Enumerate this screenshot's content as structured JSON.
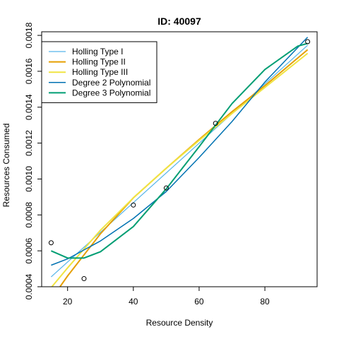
{
  "chart_data": {
    "type": "scatter",
    "title": "ID: 40097",
    "xlabel": "Resource Density",
    "ylabel": "Resources Consumed",
    "xlim": [
      12.12,
      95.88
    ],
    "ylim": [
      0.0004,
      0.00182
    ],
    "x_ticks": [
      20,
      40,
      60,
      80
    ],
    "y_ticks": [
      0.0004,
      0.0006,
      0.0008,
      0.001,
      0.0012,
      0.0014,
      0.0016,
      0.0018
    ],
    "x_tick_labels": [
      "20",
      "40",
      "60",
      "80"
    ],
    "y_tick_labels": [
      "0.0004",
      "0.0006",
      "0.0008",
      "0.0010",
      "0.0012",
      "0.0014",
      "0.0016",
      "0.0018"
    ],
    "grid": false,
    "legend_position": "top-left",
    "points": {
      "x": [
        15,
        25,
        40,
        50,
        65,
        93
      ],
      "y": [
        0.000645,
        0.000445,
        0.000855,
        0.00095,
        0.00131,
        0.001765
      ]
    },
    "series": [
      {
        "name": "Holling Type I",
        "color": "#56B4E9",
        "width": 1.2,
        "x": [
          15,
          93
        ],
        "y": [
          0.000455,
          0.001745
        ]
      },
      {
        "name": "Holling Type II",
        "color": "#E69F00",
        "width": 2,
        "x": [
          15,
          20,
          30,
          40,
          50,
          60,
          70,
          80,
          93
        ],
        "y": [
          0.00033,
          0.00046,
          0.000695,
          0.000895,
          0.00106,
          0.00122,
          0.001375,
          0.00152,
          0.00172
        ]
      },
      {
        "name": "Holling Type III",
        "color": "#F0E442",
        "width": 2,
        "x": [
          15,
          20,
          30,
          40,
          50,
          60,
          70,
          80,
          93
        ],
        "y": [
          0.000395,
          0.000505,
          0.000715,
          0.000895,
          0.00106,
          0.001215,
          0.001365,
          0.00151,
          0.0017
        ]
      },
      {
        "name": "Degree 2 Polynomial",
        "color": "#0072B2",
        "width": 1.5,
        "x": [
          15,
          20,
          30,
          40,
          50,
          60,
          70,
          80,
          93
        ],
        "y": [
          0.00052,
          0.000555,
          0.000655,
          0.00078,
          0.00093,
          0.00112,
          0.00132,
          0.00154,
          0.00179
        ]
      },
      {
        "name": "Degree 3 Polynomial",
        "color": "#009E73",
        "width": 2,
        "x": [
          15,
          20,
          25,
          30,
          40,
          50,
          60,
          65,
          70,
          80,
          90,
          93
        ],
        "y": [
          0.0006,
          0.00056,
          0.00056,
          0.000595,
          0.000735,
          0.000945,
          0.00118,
          0.0013,
          0.00142,
          0.00161,
          0.00174,
          0.001755
        ]
      }
    ]
  }
}
